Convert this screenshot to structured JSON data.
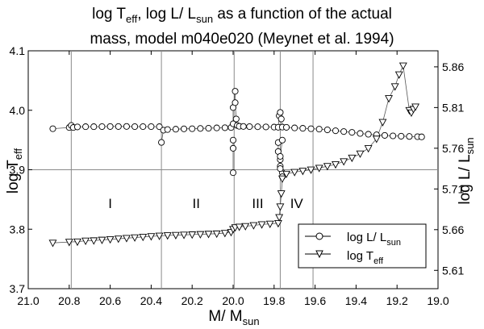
{
  "chart_data": {
    "type": "scatter",
    "title": {
      "line1": {
        "a": "log T",
        "a_sub": "eff",
        "b": ", log L/ L",
        "b_sub": "sun",
        "c": " as a function of the actual"
      },
      "line2": "mass, model m040e020 (Meynet et al. 1994)"
    },
    "xlabel": {
      "main": "M/ M",
      "sub": "sun"
    },
    "ylabel_left": {
      "main": "log T",
      "sub": "eff"
    },
    "ylabel_right": {
      "main": "log L/ L",
      "sub": "sun"
    },
    "xlim": [
      21.0,
      19.0
    ],
    "ylim_left": [
      3.7,
      4.1
    ],
    "ylim_right": [
      5.5875,
      5.8797
    ],
    "x_ticks": [
      "21.0",
      "20.8",
      "20.6",
      "20.4",
      "20.2",
      "20.0",
      "19.8",
      "19.6",
      "19.4",
      "19.2",
      "19.0"
    ],
    "y_ticks_left": [
      "3.7",
      "3.8",
      "3.9",
      "4.0",
      "4.1"
    ],
    "y_ticks_right": [
      "5.61",
      "5.66",
      "5.71",
      "5.76",
      "5.81",
      "5.86"
    ],
    "y_tick_values_right": [
      5.61,
      5.66,
      5.71,
      5.76,
      5.81,
      5.86
    ],
    "phase_lines_x": [
      20.79,
      20.35,
      19.995,
      19.77,
      19.61
    ],
    "phases": [
      {
        "label": "I",
        "x": 20.6
      },
      {
        "label": "II",
        "x": 20.18
      },
      {
        "label": "III",
        "x": 19.88
      },
      {
        "label": "IV",
        "x": 19.69
      }
    ],
    "reference_line_left": 3.9,
    "legend": {
      "position": "bottom-right",
      "entries": [
        {
          "main": "log L/ L",
          "sub": "sun",
          "marker": "circle"
        },
        {
          "main": "log T",
          "sub": "eff",
          "marker": "triangle-down"
        }
      ]
    },
    "series": [
      {
        "name": "log L/ L_sun",
        "axis": "right",
        "marker": "circle",
        "segments": [
          [
            [
              20.88,
              5.784
            ],
            [
              20.8,
              5.7855
            ],
            [
              20.79,
              5.788
            ],
            [
              20.78,
              5.7855
            ],
            [
              20.76,
              5.7862
            ],
            [
              20.72,
              5.7865
            ],
            [
              20.68,
              5.7865
            ],
            [
              20.64,
              5.7866
            ],
            [
              20.6,
              5.7867
            ],
            [
              20.56,
              5.7867
            ],
            [
              20.52,
              5.7868
            ],
            [
              20.48,
              5.7866
            ],
            [
              20.44,
              5.7866
            ],
            [
              20.4,
              5.7866
            ],
            [
              20.36,
              5.7865
            ]
          ],
          [
            [
              20.35,
              5.7672
            ],
            [
              20.34,
              5.7822
            ],
            [
              20.32,
              5.783
            ],
            [
              20.28,
              5.7834
            ],
            [
              20.24,
              5.7838
            ],
            [
              20.2,
              5.784
            ],
            [
              20.16,
              5.7843
            ],
            [
              20.12,
              5.7846
            ],
            [
              20.08,
              5.785
            ],
            [
              20.04,
              5.7852
            ],
            [
              20.01,
              5.7855
            ],
            [
              20.0,
              5.79
            ],
            [
              20.0,
              5.81
            ],
            [
              19.99,
              5.83
            ],
            [
              19.99,
              5.816
            ],
            [
              19.985,
              5.796
            ],
            [
              19.98,
              5.788
            ],
            [
              19.97,
              5.787
            ],
            [
              19.95,
              5.7868
            ],
            [
              19.92,
              5.7866
            ],
            [
              19.88,
              5.7864
            ],
            [
              19.84,
              5.7862
            ],
            [
              19.8,
              5.786
            ],
            [
              19.78,
              5.7858
            ],
            [
              19.775,
              5.8
            ],
            [
              19.77,
              5.804
            ],
            [
              19.765,
              5.796
            ],
            [
              19.76,
              5.786
            ],
            [
              19.74,
              5.7857
            ],
            [
              19.7,
              5.785
            ],
            [
              19.66,
              5.7845
            ],
            [
              19.62,
              5.784
            ],
            [
              19.58,
              5.7835
            ],
            [
              19.54,
              5.7826
            ],
            [
              19.5,
              5.7815
            ],
            [
              19.46,
              5.7805
            ],
            [
              19.42,
              5.7795
            ],
            [
              19.38,
              5.7782
            ],
            [
              19.34,
              5.7772
            ],
            [
              19.3,
              5.7765
            ],
            [
              19.26,
              5.7758
            ],
            [
              19.22,
              5.7752
            ],
            [
              19.18,
              5.7748
            ],
            [
              19.14,
              5.7745
            ],
            [
              19.1,
              5.7742
            ],
            [
              19.08,
              5.774
            ]
          ],
          [
            [
              20.0,
              5.73
            ],
            [
              20.0,
              5.76
            ],
            [
              20.0,
              5.77
            ]
          ],
          [
            [
              19.78,
              5.767
            ],
            [
              19.78,
              5.756
            ],
            [
              19.77,
              5.746
            ],
            [
              19.77,
              5.738
            ],
            [
              19.76,
              5.73
            ],
            [
              19.76,
              5.725
            ],
            [
              19.77,
              5.735
            ],
            [
              19.77,
              5.75
            ],
            [
              19.76,
              5.77
            ]
          ]
        ]
      },
      {
        "name": "log T_eff",
        "axis": "left",
        "marker": "triangle-down",
        "segments": [
          [
            [
              20.88,
              3.777
            ],
            [
              20.8,
              3.7785
            ],
            [
              20.76,
              3.779
            ],
            [
              20.72,
              3.7805
            ],
            [
              20.68,
              3.781
            ],
            [
              20.64,
              3.782
            ],
            [
              20.6,
              3.783
            ],
            [
              20.56,
              3.784
            ],
            [
              20.52,
              3.785
            ],
            [
              20.48,
              3.786
            ],
            [
              20.44,
              3.787
            ],
            [
              20.4,
              3.788
            ],
            [
              20.36,
              3.7888
            ],
            [
              20.32,
              3.7895
            ],
            [
              20.28,
              3.79
            ],
            [
              20.24,
              3.7905
            ],
            [
              20.2,
              3.791
            ],
            [
              20.16,
              3.7915
            ],
            [
              20.12,
              3.792
            ],
            [
              20.08,
              3.7925
            ],
            [
              20.04,
              3.7935
            ],
            [
              20.01,
              3.795
            ],
            [
              20.0,
              3.8
            ],
            [
              19.99,
              3.803
            ],
            [
              19.97,
              3.804
            ],
            [
              19.94,
              3.805
            ],
            [
              19.9,
              3.8065
            ],
            [
              19.86,
              3.808
            ],
            [
              19.82,
              3.809
            ],
            [
              19.78,
              3.81
            ],
            [
              19.775,
              3.82
            ],
            [
              19.77,
              3.838
            ],
            [
              19.765,
              3.86
            ],
            [
              19.76,
              3.885
            ],
            [
              19.74,
              3.893
            ],
            [
              19.7,
              3.896
            ],
            [
              19.66,
              3.898
            ],
            [
              19.62,
              3.9
            ],
            [
              19.58,
              3.903
            ],
            [
              19.54,
              3.906
            ],
            [
              19.5,
              3.909
            ],
            [
              19.46,
              3.914
            ],
            [
              19.42,
              3.92
            ],
            [
              19.38,
              3.927
            ],
            [
              19.34,
              3.936
            ],
            [
              19.3,
              3.952
            ],
            [
              19.27,
              3.98
            ],
            [
              19.24,
              4.02
            ],
            [
              19.21,
              4.04
            ],
            [
              19.19,
              4.06
            ],
            [
              19.17,
              4.075
            ],
            [
              19.14,
              4.0
            ],
            [
              19.13,
              3.996
            ],
            [
              19.12,
              4.002
            ],
            [
              19.11,
              4.006
            ]
          ]
        ]
      }
    ]
  }
}
